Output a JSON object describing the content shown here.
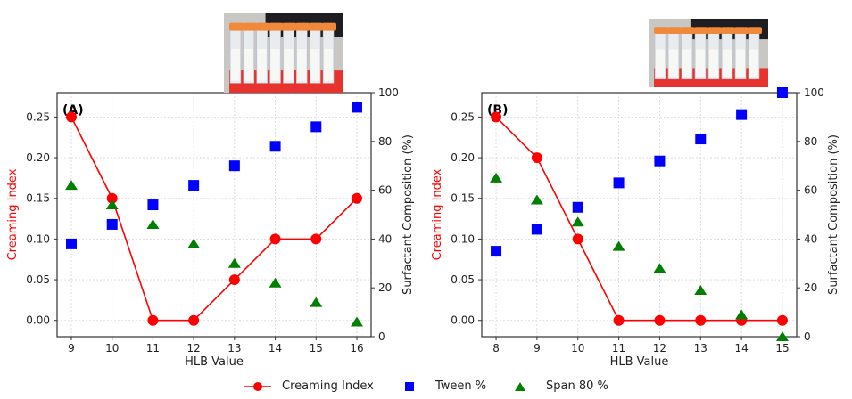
{
  "chart_data": [
    {
      "type": "line",
      "panel_label": "(A)",
      "xlabel": "HLB Value",
      "ylabel_left": "Creaming Index",
      "ylabel_right": "Surfactant Composition (%)",
      "x": [
        9,
        10,
        11,
        12,
        13,
        14,
        15,
        16
      ],
      "xlim": [
        8.65,
        16.35
      ],
      "ylim_left": [
        -0.02,
        0.28
      ],
      "ylim_right": [
        0,
        100
      ],
      "left_ticks": [
        "0.00",
        "0.05",
        "0.10",
        "0.15",
        "0.20",
        "0.25"
      ],
      "right_ticks": [
        "0",
        "20",
        "40",
        "60",
        "80",
        "100"
      ],
      "grid": true,
      "series": [
        {
          "name": "Creaming Index",
          "axis": "left",
          "marker": "circle",
          "line": true,
          "color": "#ff0000",
          "values": [
            0.25,
            0.15,
            0.0,
            0.0,
            0.05,
            0.1,
            0.1,
            0.15
          ]
        },
        {
          "name": "Tween %",
          "axis": "right",
          "marker": "square",
          "line": false,
          "color": "#0000ff",
          "values": [
            38,
            46,
            54,
            62,
            70,
            78,
            86,
            94
          ]
        },
        {
          "name": "Span 80 %",
          "axis": "right",
          "marker": "triangle",
          "line": false,
          "color": "#007f00",
          "values": [
            62,
            54,
            46,
            38,
            30,
            22,
            14,
            6
          ]
        }
      ]
    },
    {
      "type": "line",
      "panel_label": "(B)",
      "xlabel": "HLB Value",
      "ylabel_left": "Creaming Index",
      "ylabel_right": "Surfactant Composition (%)",
      "x": [
        8,
        9,
        10,
        11,
        12,
        13,
        14,
        15
      ],
      "xlim": [
        7.65,
        15.35
      ],
      "ylim_left": [
        -0.02,
        0.28
      ],
      "ylim_right": [
        0,
        100
      ],
      "left_ticks": [
        "0.00",
        "0.05",
        "0.10",
        "0.15",
        "0.20",
        "0.25"
      ],
      "right_ticks": [
        "0",
        "20",
        "40",
        "60",
        "80",
        "100"
      ],
      "grid": true,
      "series": [
        {
          "name": "Creaming Index",
          "axis": "left",
          "marker": "circle",
          "line": true,
          "color": "#ff0000",
          "values": [
            0.25,
            0.2,
            0.1,
            0.0,
            0.0,
            0.0,
            0.0,
            0.0
          ]
        },
        {
          "name": "Tween %",
          "axis": "right",
          "marker": "square",
          "line": false,
          "color": "#0000ff",
          "values": [
            35,
            44,
            53,
            63,
            72,
            81,
            91,
            100
          ]
        },
        {
          "name": "Span 80 %",
          "axis": "right",
          "marker": "triangle",
          "line": false,
          "color": "#007f00",
          "values": [
            65,
            56,
            47,
            37,
            28,
            19,
            9,
            0
          ]
        }
      ]
    }
  ],
  "legend": {
    "placement": "bottom-center",
    "items": [
      {
        "label": "Creaming Index",
        "marker": "circle-line",
        "color": "#ff0000"
      },
      {
        "label": "Tween %",
        "marker": "square",
        "color": "#0000ff"
      },
      {
        "label": "Span 80 %",
        "marker": "triangle",
        "color": "#007f00"
      }
    ]
  },
  "photos": [
    {
      "subject": "test-tubes-rack-photo",
      "tube_count": 8,
      "cap_color": "#f08a3a",
      "rack_color": "#e8322d"
    },
    {
      "subject": "test-tubes-rack-photo",
      "tube_count": 8,
      "cap_color": "#f08a3a",
      "rack_color": "#e8322d"
    }
  ],
  "colors": {
    "axis": "#333333",
    "grid": "#cccccc",
    "creaming_label": "#ff0000",
    "text": "#222222"
  }
}
